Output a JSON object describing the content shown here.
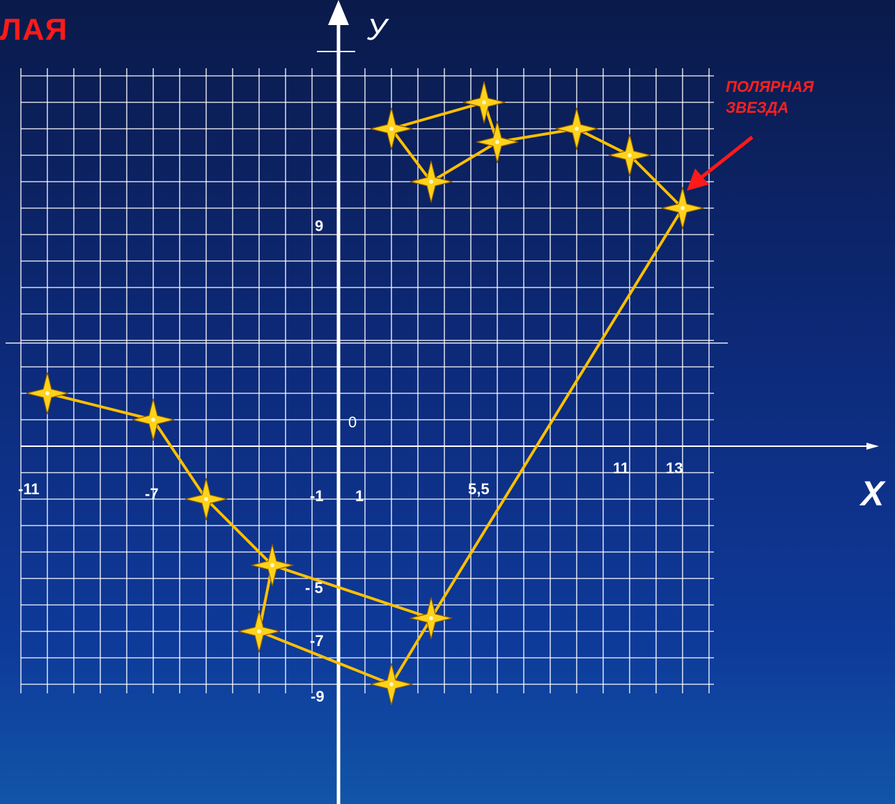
{
  "title_fragment": "ЛАЯ",
  "annotation": {
    "line1": "ПОЛЯРНАЯ",
    "line2": "ЗВЕЗДА",
    "color": "#ff2020"
  },
  "axes": {
    "x_label": "X",
    "y_label": "У"
  },
  "tick_labels": {
    "origin": "0",
    "x_neg11": "-11",
    "x_neg7": "-7",
    "x_neg1": "-1",
    "x_1": "1",
    "x_5_5": "5,5",
    "x_11": "11",
    "x_13": "13",
    "y_9": "9",
    "y_neg5": "- 5",
    "y_neg7": "-7",
    "y_neg9": "-9"
  },
  "colors": {
    "grid": "#ffffff",
    "axes": "#ffffff",
    "constellation_line": "#ffc000",
    "star": "#ffd21a",
    "arrow": "#ff1a1a"
  },
  "constellations": [
    {
      "name": "",
      "stars": [
        [
          13,
          9
        ],
        [
          11,
          11
        ],
        [
          9,
          12
        ],
        [
          6,
          11.5
        ],
        [
          3.5,
          10
        ],
        [
          2,
          12
        ],
        [
          5.5,
          13
        ],
        [
          6,
          11.5
        ]
      ]
    },
    {
      "name": "",
      "stars": [
        [
          -11,
          2
        ],
        [
          -7,
          1
        ],
        [
          -5,
          -2
        ],
        [
          -2.5,
          -4.5
        ],
        [
          -3,
          -7
        ],
        [
          2,
          -9
        ],
        [
          3.5,
          -6.5
        ],
        [
          -2.5,
          -4.5
        ]
      ]
    },
    {
      "name": "",
      "stars": [
        [
          3.5,
          -6.5
        ],
        [
          13,
          9
        ]
      ]
    }
  ]
}
